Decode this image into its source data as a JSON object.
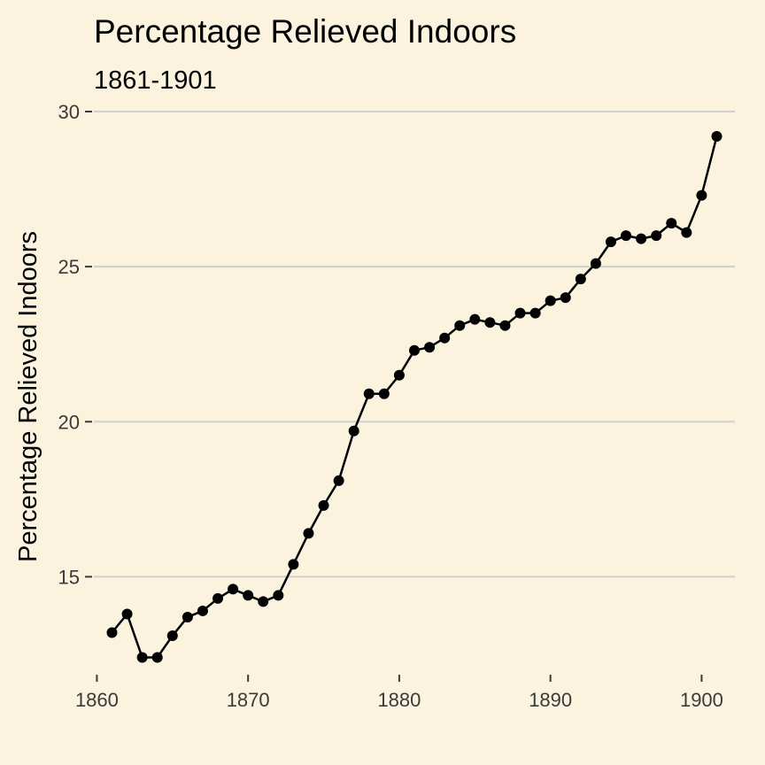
{
  "colors": {
    "background": "#FCF3DF",
    "gridline": "#CFCFCC",
    "tick": "#3A3A3A",
    "series": "#000000"
  },
  "chart_data": {
    "type": "line",
    "markers": "circle",
    "title": "Percentage Relieved Indoors",
    "subtitle": "1861-1901",
    "xlabel": "",
    "ylabel": "Percentage Relieved Indoors",
    "xlim": [
      1859.8,
      1902.2
    ],
    "ylim": [
      11.9,
      30.0
    ],
    "x_ticks": [
      1860,
      1870,
      1880,
      1890,
      1900
    ],
    "y_ticks": [
      15,
      20,
      25,
      30
    ],
    "grid": "horizontal major",
    "legend": "none",
    "series": [
      {
        "x": [
          1861,
          1862,
          1863,
          1864,
          1865,
          1866,
          1867,
          1868,
          1869,
          1870,
          1871,
          1872,
          1873,
          1874,
          1875,
          1876,
          1877,
          1878,
          1879,
          1880,
          1881,
          1882,
          1883,
          1884,
          1885,
          1886,
          1887,
          1888,
          1889,
          1890,
          1891,
          1892,
          1893,
          1894,
          1895,
          1896,
          1897,
          1898,
          1899,
          1900,
          1901
        ],
        "values": [
          13.2,
          13.8,
          12.4,
          12.4,
          13.1,
          13.7,
          13.9,
          14.3,
          14.6,
          14.4,
          14.2,
          14.4,
          15.4,
          16.4,
          17.3,
          18.1,
          19.7,
          20.9,
          20.9,
          21.5,
          22.3,
          22.4,
          22.7,
          23.1,
          23.3,
          23.2,
          23.1,
          23.5,
          23.5,
          23.9,
          24.0,
          24.6,
          25.1,
          25.8,
          26.0,
          25.9,
          26.0,
          26.4,
          26.1,
          27.3,
          29.2
        ]
      }
    ]
  }
}
